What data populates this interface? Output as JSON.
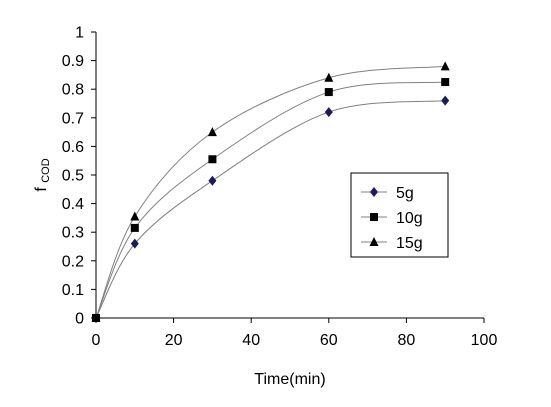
{
  "chart_data": {
    "type": "scatter",
    "title": "",
    "xlabel": "Time(min)",
    "ylabel": "f",
    "ylabel_sub": "COD",
    "xlim": [
      0,
      100
    ],
    "ylim": [
      0,
      1
    ],
    "x_ticks": [
      0,
      20,
      40,
      60,
      80,
      100
    ],
    "y_ticks": [
      0,
      0.1,
      0.2,
      0.3,
      0.4,
      0.5,
      0.6,
      0.7,
      0.8,
      0.9,
      1
    ],
    "x_tick_labels": [
      "0",
      "20",
      "40",
      "60",
      "80",
      "100"
    ],
    "y_tick_labels": [
      "0",
      "0.1",
      "0.2",
      "0.3",
      "0.4",
      "0.5",
      "0.6",
      "0.7",
      "0.8",
      "0.9",
      "1"
    ],
    "grid": false,
    "legend_position": "center-right",
    "x": [
      0,
      10,
      30,
      60,
      90
    ],
    "series": [
      {
        "name": "5g",
        "marker": "diamond",
        "color": "#1a1a5e",
        "values": [
          0,
          0.26,
          0.48,
          0.72,
          0.76
        ]
      },
      {
        "name": "10g",
        "marker": "square",
        "color": "#000000",
        "values": [
          0,
          0.315,
          0.555,
          0.79,
          0.825
        ]
      },
      {
        "name": "15g",
        "marker": "triangle",
        "color": "#000000",
        "values": [
          0,
          0.355,
          0.65,
          0.84,
          0.88
        ]
      }
    ],
    "trend_line_color": "#808080"
  }
}
